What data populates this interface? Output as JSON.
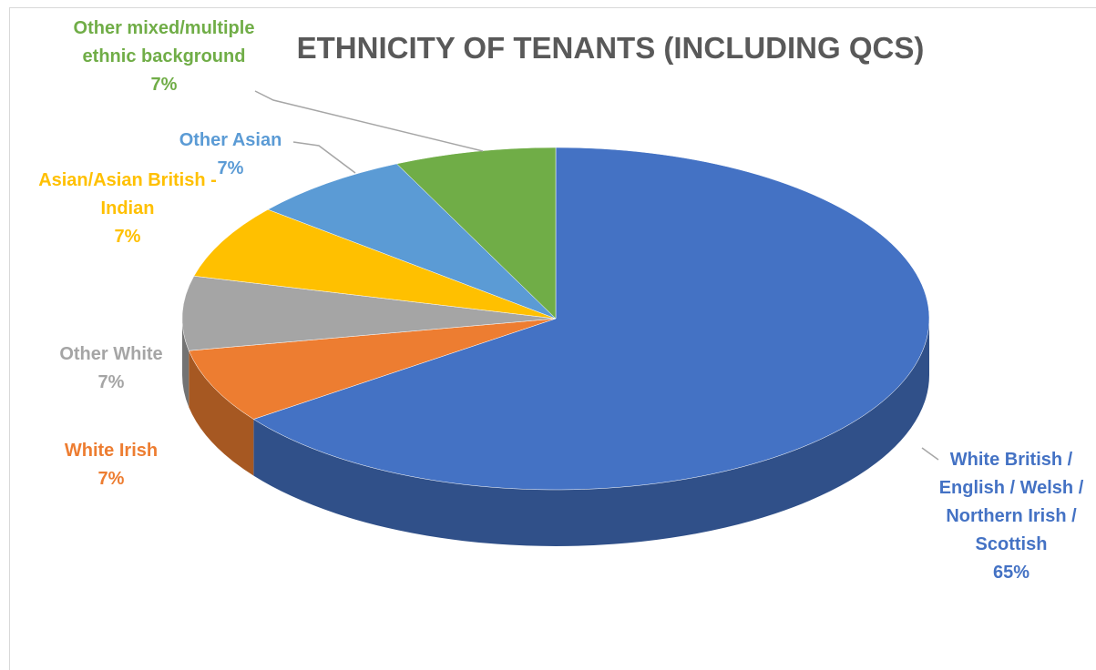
{
  "chart_data": {
    "type": "pie",
    "title": "ETHNICITY OF TENANTS (INCLUDING QCS)",
    "categories": [
      "White British / English / Welsh / Northern Irish / Scottish",
      "White Irish",
      "Other White",
      "Asian/Asian British - Indian",
      "Other Asian",
      "Other mixed/multiple ethnic background"
    ],
    "values": [
      65,
      7,
      7,
      7,
      7,
      7
    ],
    "value_labels": [
      "65%",
      "7%",
      "7%",
      "7%",
      "7%",
      "7%"
    ],
    "colors": [
      "#4472c4",
      "#ed7d31",
      "#a5a5a5",
      "#ffc000",
      "#5b9bd5",
      "#70ad47"
    ]
  }
}
